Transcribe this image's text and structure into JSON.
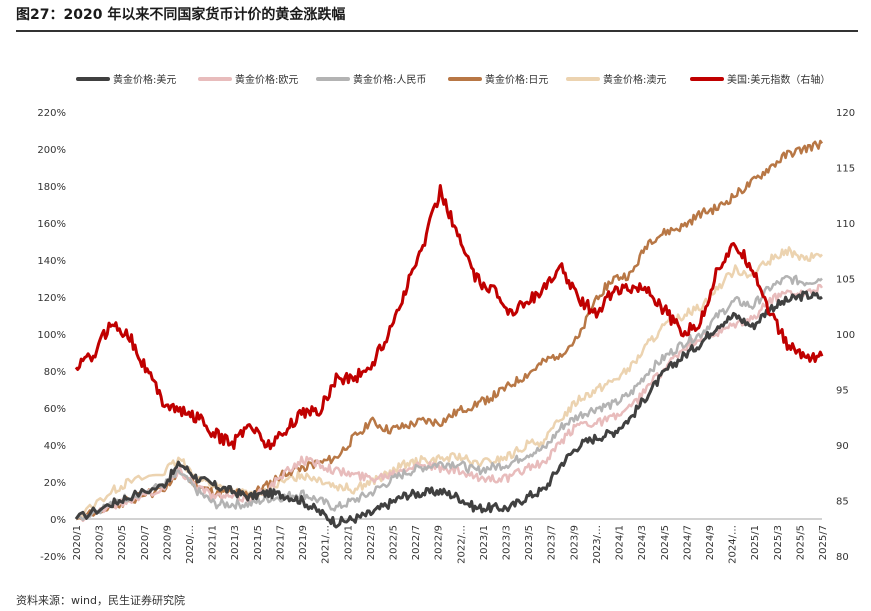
{
  "title": "图27：2020 年以来不同国家货币计价的黄金涨跌幅",
  "source": "资料来源：wind，民生证券研究院",
  "chart_data": {
    "type": "line",
    "title": "2020 年以来不同国家货币计价的黄金涨跌幅",
    "x_tick_labels": [
      "2020/1",
      "2020/3",
      "2020/5",
      "2020/7",
      "2020/9",
      "2020/…",
      "2021/1",
      "2021/3",
      "2021/5",
      "2021/7",
      "2021/9",
      "2021/…",
      "2022/1",
      "2022/3",
      "2022/5",
      "2022/7",
      "2022/9",
      "2022/…",
      "2023/1",
      "2023/3",
      "2023/5",
      "2023/7",
      "2023/9",
      "2023/…",
      "2024/1",
      "2024/3",
      "2024/5",
      "2024/7",
      "2024/9",
      "2024/…",
      "2025/1",
      "2025/3",
      "2025/5",
      "2025/7"
    ],
    "y_left": {
      "ticks": [
        "-20%",
        "0%",
        "20%",
        "40%",
        "60%",
        "80%",
        "100%",
        "120%",
        "140%",
        "160%",
        "180%",
        "200%",
        "220%"
      ],
      "range": [
        -20,
        220
      ],
      "unit": "%"
    },
    "y_right": {
      "ticks": [
        "80",
        "85",
        "90",
        "95",
        "100",
        "105",
        "110",
        "115",
        "120"
      ],
      "range": [
        80,
        120
      ]
    },
    "series": [
      {
        "name": "黄金价格:美元",
        "color": "#404040",
        "axis": "left",
        "width": 3,
        "points": [
          [
            0,
            0
          ],
          [
            2,
            8
          ],
          [
            3,
            12
          ],
          [
            5,
            18
          ],
          [
            6,
            30
          ],
          [
            7,
            22
          ],
          [
            8,
            18
          ],
          [
            9,
            15
          ],
          [
            10,
            12
          ],
          [
            11,
            14
          ],
          [
            12,
            13
          ],
          [
            13,
            10
          ],
          [
            14,
            4
          ],
          [
            15,
            -2
          ],
          [
            16,
            0
          ],
          [
            17,
            3
          ],
          [
            18,
            8
          ],
          [
            19,
            13
          ],
          [
            20,
            14
          ],
          [
            21,
            15
          ],
          [
            22,
            12
          ],
          [
            23,
            6
          ],
          [
            24,
            6
          ],
          [
            25,
            6
          ],
          [
            26,
            12
          ],
          [
            27,
            16
          ],
          [
            28,
            30
          ],
          [
            29,
            40
          ],
          [
            30,
            44
          ],
          [
            31,
            47
          ],
          [
            32,
            55
          ],
          [
            33,
            68
          ],
          [
            34,
            80
          ],
          [
            35,
            88
          ],
          [
            36,
            95
          ],
          [
            37,
            105
          ],
          [
            38,
            110
          ],
          [
            39,
            104
          ],
          [
            40,
            114
          ],
          [
            41,
            118
          ],
          [
            42,
            121
          ],
          [
            43,
            120
          ]
        ]
      },
      {
        "name": "黄金价格:欧元",
        "color": "#e8bcbc",
        "axis": "left",
        "width": 2.5,
        "points": [
          [
            0,
            0
          ],
          [
            2,
            7
          ],
          [
            3,
            10
          ],
          [
            5,
            17
          ],
          [
            6,
            26
          ],
          [
            7,
            18
          ],
          [
            8,
            12
          ],
          [
            9,
            12
          ],
          [
            10,
            11
          ],
          [
            11,
            16
          ],
          [
            12,
            24
          ],
          [
            13,
            32
          ],
          [
            14,
            30
          ],
          [
            15,
            26
          ],
          [
            16,
            24
          ],
          [
            17,
            22
          ],
          [
            18,
            24
          ],
          [
            19,
            28
          ],
          [
            20,
            30
          ],
          [
            21,
            27
          ],
          [
            22,
            26
          ],
          [
            23,
            22
          ],
          [
            24,
            22
          ],
          [
            25,
            22
          ],
          [
            26,
            28
          ],
          [
            27,
            30
          ],
          [
            28,
            42
          ],
          [
            29,
            52
          ],
          [
            30,
            52
          ],
          [
            31,
            55
          ],
          [
            32,
            60
          ],
          [
            33,
            72
          ],
          [
            34,
            82
          ],
          [
            35,
            92
          ],
          [
            36,
            98
          ],
          [
            37,
            100
          ],
          [
            38,
            105
          ],
          [
            39,
            108
          ],
          [
            40,
            118
          ],
          [
            41,
            123
          ],
          [
            42,
            122
          ],
          [
            43,
            125
          ]
        ]
      },
      {
        "name": "黄金价格:人民币",
        "color": "#b3b3b3",
        "axis": "left",
        "width": 2.5,
        "points": [
          [
            0,
            0
          ],
          [
            2,
            8
          ],
          [
            3,
            12
          ],
          [
            5,
            18
          ],
          [
            6,
            25
          ],
          [
            7,
            15
          ],
          [
            8,
            8
          ],
          [
            9,
            8
          ],
          [
            10,
            8
          ],
          [
            11,
            11
          ],
          [
            12,
            12
          ],
          [
            13,
            14
          ],
          [
            14,
            10
          ],
          [
            15,
            6
          ],
          [
            16,
            10
          ],
          [
            17,
            14
          ],
          [
            18,
            20
          ],
          [
            19,
            25
          ],
          [
            20,
            28
          ],
          [
            21,
            30
          ],
          [
            22,
            30
          ],
          [
            23,
            26
          ],
          [
            24,
            28
          ],
          [
            25,
            30
          ],
          [
            26,
            35
          ],
          [
            27,
            38
          ],
          [
            28,
            50
          ],
          [
            29,
            56
          ],
          [
            30,
            60
          ],
          [
            31,
            62
          ],
          [
            32,
            68
          ],
          [
            33,
            80
          ],
          [
            34,
            88
          ],
          [
            35,
            95
          ],
          [
            36,
            100
          ],
          [
            37,
            110
          ],
          [
            38,
            118
          ],
          [
            39,
            115
          ],
          [
            40,
            125
          ],
          [
            41,
            130
          ],
          [
            42,
            128
          ],
          [
            43,
            130
          ]
        ]
      },
      {
        "name": "黄金价格:日元",
        "color": "#b87745",
        "axis": "left",
        "width": 2.5,
        "points": [
          [
            0,
            0
          ],
          [
            2,
            6
          ],
          [
            3,
            10
          ],
          [
            5,
            16
          ],
          [
            6,
            25
          ],
          [
            7,
            18
          ],
          [
            8,
            14
          ],
          [
            9,
            14
          ],
          [
            10,
            13
          ],
          [
            11,
            18
          ],
          [
            12,
            25
          ],
          [
            13,
            28
          ],
          [
            14,
            30
          ],
          [
            15,
            33
          ],
          [
            16,
            44
          ],
          [
            17,
            53
          ],
          [
            18,
            48
          ],
          [
            19,
            50
          ],
          [
            20,
            53
          ],
          [
            21,
            52
          ],
          [
            22,
            58
          ],
          [
            23,
            62
          ],
          [
            24,
            66
          ],
          [
            25,
            72
          ],
          [
            26,
            78
          ],
          [
            27,
            85
          ],
          [
            28,
            90
          ],
          [
            29,
            98
          ],
          [
            30,
            120
          ],
          [
            31,
            130
          ],
          [
            32,
            132
          ],
          [
            33,
            150
          ],
          [
            34,
            155
          ],
          [
            35,
            158
          ],
          [
            36,
            165
          ],
          [
            37,
            168
          ],
          [
            38,
            175
          ],
          [
            39,
            182
          ],
          [
            40,
            190
          ],
          [
            41,
            197
          ],
          [
            42,
            200
          ],
          [
            43,
            203
          ]
        ]
      },
      {
        "name": "黄金价格:澳元",
        "color": "#ecd3b0",
        "axis": "left",
        "width": 2.5,
        "points": [
          [
            0,
            0
          ],
          [
            2,
            15
          ],
          [
            3,
            20
          ],
          [
            5,
            25
          ],
          [
            6,
            32
          ],
          [
            7,
            22
          ],
          [
            8,
            18
          ],
          [
            9,
            15
          ],
          [
            10,
            13
          ],
          [
            11,
            16
          ],
          [
            12,
            20
          ],
          [
            13,
            24
          ],
          [
            14,
            22
          ],
          [
            15,
            18
          ],
          [
            16,
            16
          ],
          [
            17,
            20
          ],
          [
            18,
            24
          ],
          [
            19,
            30
          ],
          [
            20,
            32
          ],
          [
            21,
            32
          ],
          [
            22,
            34
          ],
          [
            23,
            30
          ],
          [
            24,
            31
          ],
          [
            25,
            34
          ],
          [
            26,
            40
          ],
          [
            27,
            42
          ],
          [
            28,
            55
          ],
          [
            29,
            65
          ],
          [
            30,
            70
          ],
          [
            31,
            75
          ],
          [
            32,
            82
          ],
          [
            33,
            95
          ],
          [
            34,
            105
          ],
          [
            35,
            110
          ],
          [
            36,
            115
          ],
          [
            37,
            125
          ],
          [
            38,
            135
          ],
          [
            39,
            132
          ],
          [
            40,
            140
          ],
          [
            41,
            145
          ],
          [
            42,
            140
          ],
          [
            43,
            143
          ]
        ]
      },
      {
        "name": "美国:美元指数（右轴）",
        "color": "#c00000",
        "axis": "right",
        "width": 3,
        "points": [
          [
            0,
            97
          ],
          [
            1,
            98
          ],
          [
            2,
            101
          ],
          [
            3,
            100
          ],
          [
            4,
            97
          ],
          [
            5,
            94
          ],
          [
            6,
            93
          ],
          [
            7,
            92.5
          ],
          [
            8,
            91
          ],
          [
            9,
            90
          ],
          [
            10,
            92
          ],
          [
            11,
            90
          ],
          [
            12,
            91
          ],
          [
            13,
            93
          ],
          [
            14,
            93
          ],
          [
            15,
            96
          ],
          [
            16,
            96
          ],
          [
            17,
            97
          ],
          [
            18,
            100
          ],
          [
            19,
            104
          ],
          [
            20,
            108
          ],
          [
            21,
            113
          ],
          [
            22,
            109
          ],
          [
            23,
            105
          ],
          [
            24,
            104
          ],
          [
            25,
            102
          ],
          [
            26,
            103
          ],
          [
            27,
            104
          ],
          [
            28,
            106
          ],
          [
            29,
            103
          ],
          [
            30,
            102
          ],
          [
            31,
            104
          ],
          [
            32,
            104
          ],
          [
            33,
            104
          ],
          [
            34,
            102
          ],
          [
            35,
            100
          ],
          [
            36,
            101
          ],
          [
            37,
            106
          ],
          [
            38,
            108
          ],
          [
            39,
            106
          ],
          [
            40,
            102
          ],
          [
            41,
            99
          ],
          [
            42,
            98
          ],
          [
            43,
            98
          ]
        ]
      }
    ],
    "x_index_range": [
      0,
      43
    ]
  }
}
